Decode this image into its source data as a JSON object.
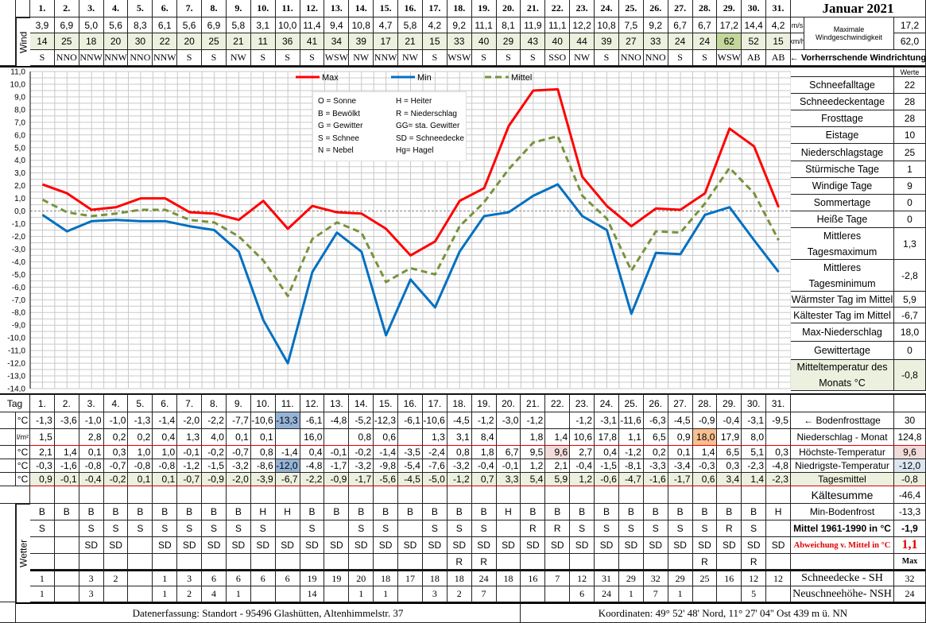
{
  "title": "Januar 2021",
  "days": [
    "1.",
    "2.",
    "3.",
    "4.",
    "5.",
    "6.",
    "7.",
    "8.",
    "9.",
    "10.",
    "11.",
    "12.",
    "13.",
    "14.",
    "15.",
    "16.",
    "17.",
    "18.",
    "19.",
    "20.",
    "21.",
    "22.",
    "23.",
    "24.",
    "25.",
    "26.",
    "27.",
    "28.",
    "29.",
    "30.",
    "31."
  ],
  "wind": {
    "label": "Wind",
    "unit_ms": "m/s",
    "unit_kmh": "km/h",
    "max_label_1": "Maximale",
    "max_label_2": "Windgeschwindigkeit",
    "max_ms": "17,2",
    "max_kmh": "62,0",
    "direction_label": "← Vorherrschende Windrichtung",
    "ms": [
      "3,9",
      "6,9",
      "5,0",
      "5,6",
      "8,3",
      "6,1",
      "5,6",
      "6,9",
      "5,8",
      "3,1",
      "10,0",
      "11,4",
      "9,4",
      "10,8",
      "4,7",
      "5,8",
      "4,2",
      "9,2",
      "11,1",
      "8,1",
      "11,9",
      "11,1",
      "12,2",
      "10,8",
      "7,5",
      "9,2",
      "6,7",
      "6,7",
      "17,2",
      "14,4",
      "4,2"
    ],
    "kmh": [
      "14",
      "25",
      "18",
      "20",
      "30",
      "22",
      "20",
      "25",
      "21",
      "11",
      "36",
      "41",
      "34",
      "39",
      "17",
      "21",
      "15",
      "33",
      "40",
      "29",
      "43",
      "40",
      "44",
      "39",
      "27",
      "33",
      "24",
      "24",
      "62",
      "52",
      "15"
    ],
    "dir": [
      "S",
      "NNO",
      "NNW",
      "NNW",
      "NNO",
      "NNW",
      "S",
      "S",
      "NW",
      "S",
      "S",
      "S",
      "WSW",
      "NW",
      "NNW",
      "NW",
      "S",
      "WSW",
      "S",
      "S",
      "S",
      "SSO",
      "NW",
      "S",
      "NNO",
      "NNO",
      "S",
      "S",
      "WSW",
      "AB",
      "AB"
    ]
  },
  "stats_header": "Werte",
  "stats": [
    {
      "label": "Schneefalltage",
      "value": "22"
    },
    {
      "label": "Schneedeckentage",
      "value": "28"
    },
    {
      "label": "Frosttage",
      "value": "28"
    },
    {
      "label": "Eistage",
      "value": "10"
    },
    {
      "label": "Niederschlagstage",
      "value": "25"
    },
    {
      "label": "Stürmische Tage",
      "value": "1"
    },
    {
      "label": "Windige Tage",
      "value": "9"
    },
    {
      "label": "Sommertage",
      "value": "0"
    },
    {
      "label": "Heiße Tage",
      "value": "0"
    },
    {
      "label": "Mittleres Tagesmaximum",
      "value": "1,3"
    },
    {
      "label": "Mittleres Tagesminimum",
      "value": "-2,8"
    },
    {
      "label": "Wärmster Tag im Mittel",
      "value": "5,9"
    },
    {
      "label": "Kältester Tag im Mittel",
      "value": "-6,7"
    },
    {
      "label": "Max-Niederschlag",
      "value": "18,0"
    },
    {
      "label": "Gewittertage",
      "value": "0"
    },
    {
      "label": "Mitteltemperatur des Monats °C",
      "value": "-0,8"
    }
  ],
  "legend_codes": [
    [
      "O = Sonne",
      "H = Heiter"
    ],
    [
      "B = Bewölkt",
      "R = Niederschlag"
    ],
    [
      "G = Gewitter",
      "GG= sta. Gewitter"
    ],
    [
      "S = Schnee",
      "SD = Schneedecke"
    ],
    [
      "N = Nebel",
      "Hg= Hagel"
    ]
  ],
  "chart_data": {
    "type": "line",
    "x": [
      1,
      2,
      3,
      4,
      5,
      6,
      7,
      8,
      9,
      10,
      11,
      12,
      13,
      14,
      15,
      16,
      17,
      18,
      19,
      20,
      21,
      22,
      23,
      24,
      25,
      26,
      27,
      28,
      29,
      30,
      31
    ],
    "ylim": [
      -14,
      11
    ],
    "yticks": [
      "11,0",
      "10,0",
      "9,0",
      "8,0",
      "7,0",
      "6,0",
      "5,0",
      "4,0",
      "3,0",
      "2,0",
      "1,0",
      "0,0",
      "-1,0",
      "-2,0",
      "-3,0",
      "-4,0",
      "-5,0",
      "-6,0",
      "-7,0",
      "-8,0",
      "-9,0",
      "-10,0",
      "-11,0",
      "-12,0",
      "-13,0",
      "-14,0"
    ],
    "grid": true,
    "legend_position": "top",
    "series": [
      {
        "name": "Max",
        "color": "#ff0000",
        "style": "solid",
        "values": [
          2.1,
          1.4,
          0.1,
          0.3,
          1.0,
          1.0,
          -0.1,
          -0.2,
          -0.7,
          0.8,
          -1.4,
          0.4,
          -0.1,
          -0.2,
          -1.4,
          -3.5,
          -2.4,
          0.8,
          1.8,
          6.7,
          9.5,
          9.6,
          2.7,
          0.4,
          -1.2,
          0.2,
          0.1,
          1.4,
          6.5,
          5.1,
          0.3
        ]
      },
      {
        "name": "Min",
        "color": "#0070c0",
        "style": "solid",
        "values": [
          -0.3,
          -1.6,
          -0.8,
          -0.7,
          -0.8,
          -0.8,
          -1.2,
          -1.5,
          -3.2,
          -8.6,
          -12.0,
          -4.8,
          -1.7,
          -3.2,
          -9.8,
          -5.4,
          -7.6,
          -3.2,
          -0.4,
          -0.1,
          1.2,
          2.1,
          -0.4,
          -1.5,
          -8.1,
          -3.3,
          -3.4,
          -0.3,
          0.3,
          -2.3,
          -4.8
        ]
      },
      {
        "name": "Mittel",
        "color": "#77933c",
        "style": "dashed",
        "values": [
          0.9,
          -0.1,
          -0.4,
          -0.2,
          0.1,
          0.1,
          -0.7,
          -0.9,
          -2.0,
          -3.9,
          -6.7,
          -2.2,
          -0.9,
          -1.7,
          -5.6,
          -4.5,
          -5.0,
          -1.2,
          0.7,
          3.3,
          5.4,
          5.9,
          1.2,
          -0.6,
          -4.7,
          -1.6,
          -1.7,
          0.6,
          3.4,
          1.4,
          -2.3
        ]
      }
    ]
  },
  "table": {
    "tag_label": "Tag",
    "unit_c": "°C",
    "unit_lm2": "l/m²",
    "wetter_label": "Wetter",
    "bodenfrost": [
      "-1,3",
      "-3,6",
      "-1,0",
      "-1,0",
      "-1,3",
      "-1,4",
      "-2,0",
      "-2,2",
      "-7,7",
      "-10,6",
      "-13,3",
      "-6,1",
      "-4,8",
      "-5,2",
      "-12,3",
      "-6,1",
      "-10,6",
      "-4,5",
      "-1,2",
      "-3,0",
      "-1,2",
      "",
      "-1,2",
      "-3,1",
      "-11,6",
      "-6,3",
      "-4,5",
      "-0,9",
      "-0,4",
      "-3,1",
      "-9,5"
    ],
    "niederschlag": [
      "1,5",
      "",
      "2,8",
      "0,2",
      "0,2",
      "0,4",
      "1,3",
      "4,0",
      "0,1",
      "0,1",
      "",
      "16,0",
      "",
      "0,8",
      "0,6",
      "",
      "1,3",
      "3,1",
      "8,4",
      "",
      "1,8",
      "1,4",
      "10,6",
      "17,8",
      "1,1",
      "6,5",
      "0,9",
      "18,0",
      "17,9",
      "8,0",
      ""
    ],
    "wetter1": [
      "B",
      "B",
      "B",
      "B",
      "B",
      "B",
      "B",
      "B",
      "B",
      "H",
      "H",
      "B",
      "B",
      "B",
      "B",
      "B",
      "B",
      "B",
      "B",
      "H",
      "B",
      "B",
      "B",
      "B",
      "B",
      "B",
      "B",
      "B",
      "B",
      "B",
      "H"
    ],
    "wetter2": [
      "S",
      "",
      "S",
      "S",
      "S",
      "S",
      "S",
      "S",
      "S",
      "S",
      "",
      "S",
      "",
      "S",
      "S",
      "",
      "S",
      "S",
      "S",
      "",
      "R",
      "R",
      "S",
      "S",
      "S",
      "S",
      "S",
      "S",
      "R",
      "S",
      ""
    ],
    "wetter3": [
      "",
      "",
      "SD",
      "SD",
      "",
      "SD",
      "SD",
      "SD",
      "SD",
      "SD",
      "SD",
      "SD",
      "SD",
      "SD",
      "SD",
      "SD",
      "SD",
      "SD",
      "SD",
      "SD",
      "SD",
      "SD",
      "SD",
      "SD",
      "SD",
      "SD",
      "SD",
      "SD",
      "SD",
      "SD",
      "SD"
    ],
    "wetter4": [
      "",
      "",
      "",
      "",
      "",
      "",
      "",
      "",
      "",
      "",
      "",
      "",
      "",
      "",
      "",
      "",
      "",
      "R",
      "R",
      "",
      "",
      "",
      "",
      "",
      "",
      "",
      "",
      "R",
      "",
      "R",
      ""
    ],
    "sh": [
      "1",
      "",
      "3",
      "2",
      "",
      "1",
      "3",
      "6",
      "6",
      "6",
      "6",
      "19",
      "19",
      "20",
      "18",
      "17",
      "18",
      "18",
      "24",
      "18",
      "16",
      "7",
      "12",
      "31",
      "29",
      "32",
      "29",
      "25",
      "16",
      "12",
      "12"
    ],
    "nsh": [
      "1",
      "",
      "3",
      "",
      "",
      "1",
      "2",
      "4",
      "1",
      "",
      "",
      "14",
      "",
      "1",
      "1",
      "",
      "3",
      "2",
      "7",
      "",
      "",
      "",
      "6",
      "24",
      "1",
      "7",
      "1",
      "",
      "",
      "5",
      ""
    ]
  },
  "summary": {
    "bodenfrosttage_label": "← Bodenfrosttage",
    "bodenfrosttage": "30",
    "niederschlag_label": "Niederschlag - Monat",
    "niederschlag": "124,8",
    "hoechste_label": "Höchste-Temperatur",
    "hoechste": "9,6",
    "niedrigste_label": "Niedrigste-Temperatur",
    "niedrigste": "-12,0",
    "tagesmittel_label": "Tagesmittel",
    "tagesmittel": "-0,8",
    "kaeltesumme_label": "Kältesumme",
    "kaeltesumme": "-46,4",
    "min_bodenfrost_label": "Min-Bodenfrost",
    "min_bodenfrost": "-13,3",
    "mittel_label": "Mittel 1961-1990 in °C",
    "mittel": "-1,9",
    "abweichung_label": "Abweichung v. Mittel in °C",
    "abweichung": "1,1",
    "max_header": "Max",
    "sh_label": "Schneedecke -   SH",
    "sh_max": "32",
    "nsh_label": "Neuschneehöhe- NSH",
    "nsh_max": "24"
  },
  "footer": {
    "standort": "Datenerfassung:  Standort -  95496  Glashütten, Altenhimmelstr. 37",
    "koordinaten": "Koordinaten:  49° 52' 48' Nord,   11° 27' 04'' Ost   439 m ü. NN"
  }
}
